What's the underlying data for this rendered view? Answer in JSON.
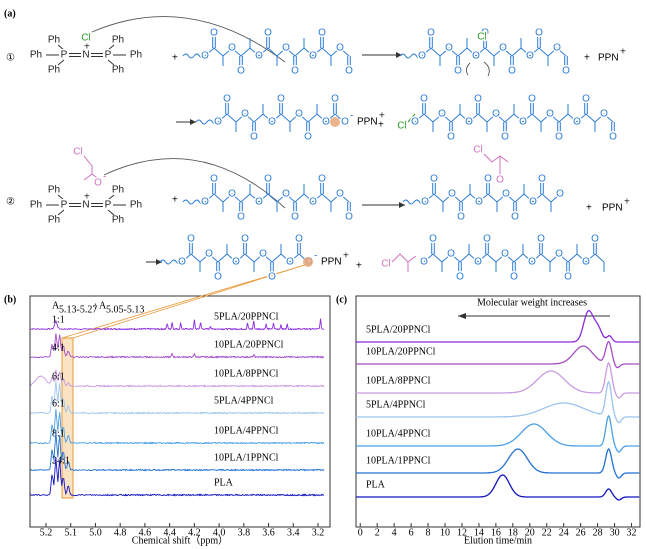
{
  "panel_a": {
    "label": "(a)",
    "steps": [
      "①",
      "②"
    ],
    "atoms": {
      "Ph": "Ph",
      "P": "P",
      "N": "N",
      "Cl": "Cl",
      "O": "O"
    },
    "plus": "+",
    "minus": "-",
    "ppn": "PPN"
  },
  "chart_data": [
    {
      "type": "line",
      "label": "(b)",
      "integral_symbol": "A",
      "integral_ranges": [
        "5.13-5.27",
        "5.05-5.13"
      ],
      "separator": ":",
      "xlabel": "Chemical shift（ppm）",
      "xlim": [
        5.3,
        3.15
      ],
      "xticks": [
        5.2,
        5.1,
        {
          "value": 5,
          "label": "5.0"
        },
        4.8,
        4.6,
        4.4,
        4.2,
        {
          "value": 4,
          "label": "4.0"
        },
        3.8,
        3.6,
        3.4,
        3.2
      ],
      "series": [
        {
          "name": "5PLA/20PPNCl",
          "color": "#8a2be2",
          "ratio": "1:1"
        },
        {
          "name": "10PLA/20PPNCl",
          "color": "#a44cc8",
          "ratio": "4:1"
        },
        {
          "name": "10PLA/8PPNCl",
          "color": "#c99ae0",
          "ratio": "6:1"
        },
        {
          "name": "5PLA/4PPNCl",
          "color": "#9cc4ee",
          "ratio": "6:1"
        },
        {
          "name": "10PLA/4PPNCl",
          "color": "#4aa0e6",
          "ratio": "8:1"
        },
        {
          "name": "10PLA/1PPNCl",
          "color": "#2272d2",
          "ratio": "24:1"
        },
        {
          "name": "PLA",
          "color": "#1414c0"
        }
      ]
    },
    {
      "type": "line",
      "label": "(c)",
      "annotation": "Molecular weight increases",
      "xlabel": "Elution time/min",
      "xlim": [
        -0.5,
        33
      ],
      "xticks": [
        0,
        2,
        4,
        6,
        8,
        10,
        12,
        14,
        16,
        18,
        20,
        22,
        24,
        26,
        28,
        30,
        32
      ],
      "series": [
        {
          "name": "5PLA/20PPNCl",
          "color": "#8a2be2"
        },
        {
          "name": "10PLA/20PPNCl",
          "color": "#a44cc8"
        },
        {
          "name": "10PLA/8PPNCl",
          "color": "#c99ae0"
        },
        {
          "name": "5PLA/4PPNCl",
          "color": "#9cc4ee"
        },
        {
          "name": "10PLA/4PPNCl",
          "color": "#4aa0e6"
        },
        {
          "name": "10PLA/1PPNCl",
          "color": "#2272d2"
        },
        {
          "name": "PLA",
          "color": "#1414c0"
        }
      ]
    }
  ]
}
